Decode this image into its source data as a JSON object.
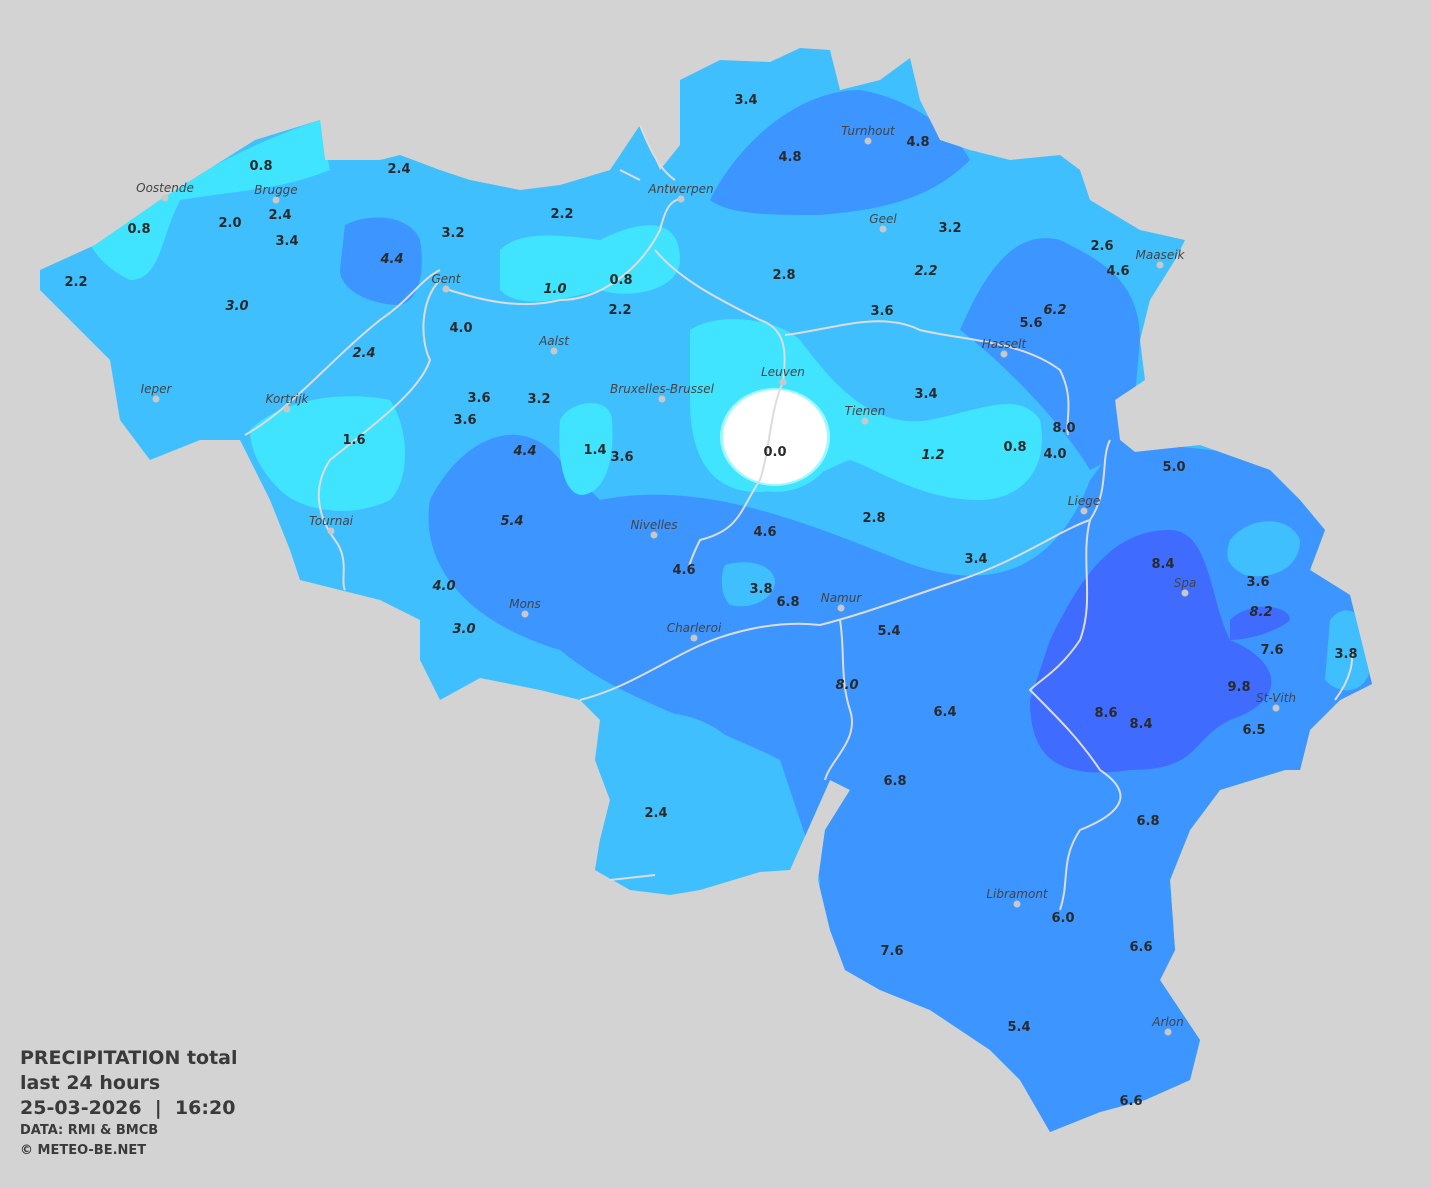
{
  "title": {
    "line1": "PRECIPITATION total",
    "line2": "last 24 hours",
    "datetime": "25-03-2026  |  16:20",
    "source": "DATA: RMI & BMCB",
    "copyright": "© METEO-BE.NET"
  },
  "colors": {
    "background": "#d3d3d3",
    "cyan": "#40e4ff",
    "light_blue": "#40bfff",
    "medium_blue": "#3d95ff",
    "dark_blue": "#3f6cff",
    "dry": "#ffffff",
    "rivers": "#dcdcdc"
  },
  "units": "mm",
  "cities": [
    "Oostende",
    "Brugge",
    "Antwerpen",
    "Turnhout",
    "Geel",
    "Maaseik",
    "Gent",
    "Aalst",
    "Hasselt",
    "Leuven",
    "Bruxelles-Brussel",
    "Ieper",
    "Kortrijk",
    "Tienen",
    "Liege",
    "Tournai",
    "Nivelles",
    "Spa",
    "Namur",
    "Mons",
    "Charleroi",
    "St-Vith",
    "Libramont",
    "Arlon"
  ],
  "values": [
    {
      "v": "3.4"
    },
    {
      "v": "4.8"
    },
    {
      "v": "4.8"
    },
    {
      "v": "0.8"
    },
    {
      "v": "2.4"
    },
    {
      "v": "2.4"
    },
    {
      "v": "2.0"
    },
    {
      "v": "0.8"
    },
    {
      "v": "3.4"
    },
    {
      "v": "3.2"
    },
    {
      "v": "2.2"
    },
    {
      "v": "3.2"
    },
    {
      "v": "2.6"
    },
    {
      "v": "4.6"
    },
    {
      "v": "2.2"
    },
    {
      "v": "4.4",
      "italic": true
    },
    {
      "v": "3.0",
      "italic": true
    },
    {
      "v": "1.0",
      "italic": true
    },
    {
      "v": "0.8"
    },
    {
      "v": "2.8"
    },
    {
      "v": "2.2",
      "italic": true
    },
    {
      "v": "6.2",
      "italic": true
    },
    {
      "v": "2.2"
    },
    {
      "v": "3.6"
    },
    {
      "v": "5.6"
    },
    {
      "v": "4.0"
    },
    {
      "v": "2.4",
      "italic": true
    },
    {
      "v": "3.4"
    },
    {
      "v": "3.6"
    },
    {
      "v": "3.2"
    },
    {
      "v": "3.6"
    },
    {
      "v": "8.0"
    },
    {
      "v": "1.6"
    },
    {
      "v": "4.4",
      "italic": true
    },
    {
      "v": "1.4"
    },
    {
      "v": "3.6"
    },
    {
      "v": "0.0"
    },
    {
      "v": "1.2",
      "italic": true
    },
    {
      "v": "0.8"
    },
    {
      "v": "4.0"
    },
    {
      "v": "5.0"
    },
    {
      "v": "5.4",
      "italic": true
    },
    {
      "v": "2.8"
    },
    {
      "v": "4.6"
    },
    {
      "v": "3.4"
    },
    {
      "v": "4.6"
    },
    {
      "v": "8.4"
    },
    {
      "v": "3.6"
    },
    {
      "v": "4.0",
      "italic": true
    },
    {
      "v": "3.8"
    },
    {
      "v": "6.8"
    },
    {
      "v": "8.2",
      "italic": true
    },
    {
      "v": "3.0",
      "italic": true
    },
    {
      "v": "5.4"
    },
    {
      "v": "7.6"
    },
    {
      "v": "3.8"
    },
    {
      "v": "8.0",
      "italic": true
    },
    {
      "v": "9.8"
    },
    {
      "v": "6.4"
    },
    {
      "v": "8.6"
    },
    {
      "v": "8.4"
    },
    {
      "v": "6.5"
    },
    {
      "v": "6.8"
    },
    {
      "v": "2.4"
    },
    {
      "v": "6.8"
    },
    {
      "v": "6.0"
    },
    {
      "v": "6.6"
    },
    {
      "v": "7.6"
    },
    {
      "v": "5.4"
    },
    {
      "v": "6.6"
    }
  ]
}
